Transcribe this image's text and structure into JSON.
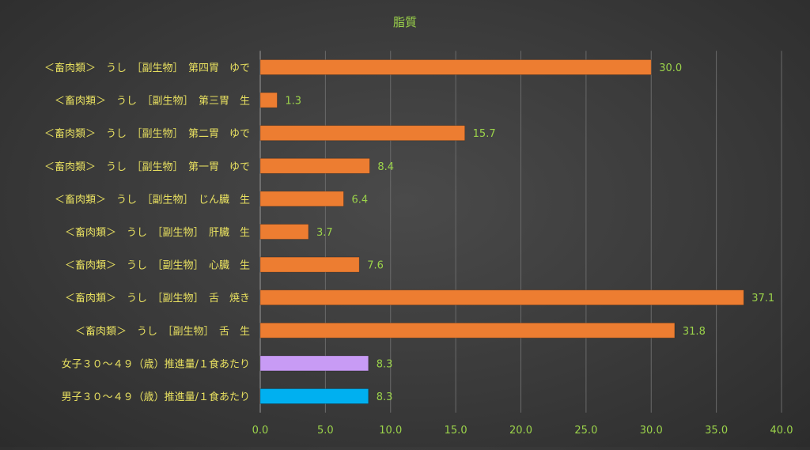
{
  "chart_data": {
    "type": "bar",
    "orientation": "horizontal",
    "title": "脂質",
    "categories": [
      "＜畜肉類＞　うし　［副生物］　第四胃　ゆで",
      "＜畜肉類＞　うし　［副生物］　第三胃　生",
      "＜畜肉類＞　うし　［副生物］　第二胃　ゆで",
      "＜畜肉類＞　うし　［副生物］　第一胃　ゆで",
      "＜畜肉類＞　うし　［副生物］　じん臓　生",
      "＜畜肉類＞　うし　［副生物］　肝臓　生",
      "＜畜肉類＞　うし　［副生物］　心臓　生",
      "＜畜肉類＞　うし　［副生物］　舌　焼き",
      "＜畜肉類＞　うし　［副生物］　舌　生",
      "女子３０～４９（歳）推進量/１食あたり",
      "男子３０～４９（歳）推進量/１食あたり"
    ],
    "values": [
      30.0,
      1.3,
      15.7,
      8.4,
      6.4,
      3.7,
      7.6,
      37.1,
      31.8,
      8.3,
      8.3
    ],
    "value_labels": [
      "30.0",
      "1.3",
      "15.7",
      "8.4",
      "6.4",
      "3.7",
      "7.6",
      "37.1",
      "31.8",
      "8.3",
      "8.3"
    ],
    "bar_colors": [
      "#ed7d31",
      "#ed7d31",
      "#ed7d31",
      "#ed7d31",
      "#ed7d31",
      "#ed7d31",
      "#ed7d31",
      "#ed7d31",
      "#ed7d31",
      "#c89bf5",
      "#00b0f0"
    ],
    "xlim": [
      0,
      40
    ],
    "x_ticks": [
      "0.0",
      "5.0",
      "10.0",
      "15.0",
      "20.0",
      "25.0",
      "30.0",
      "35.0",
      "40.0"
    ],
    "x_tick_values": [
      0,
      5,
      10,
      15,
      20,
      25,
      30,
      35,
      40
    ],
    "xlabel": "",
    "ylabel": "",
    "grid": "vertical",
    "legend": "none"
  },
  "colors": {
    "title": "#9bd34a",
    "category_label": "#e8e060",
    "value_label": "#9bd34a",
    "tick_label": "#9bd34a",
    "gridline": "#6a6a6a",
    "axis": "#9a9a9a"
  }
}
